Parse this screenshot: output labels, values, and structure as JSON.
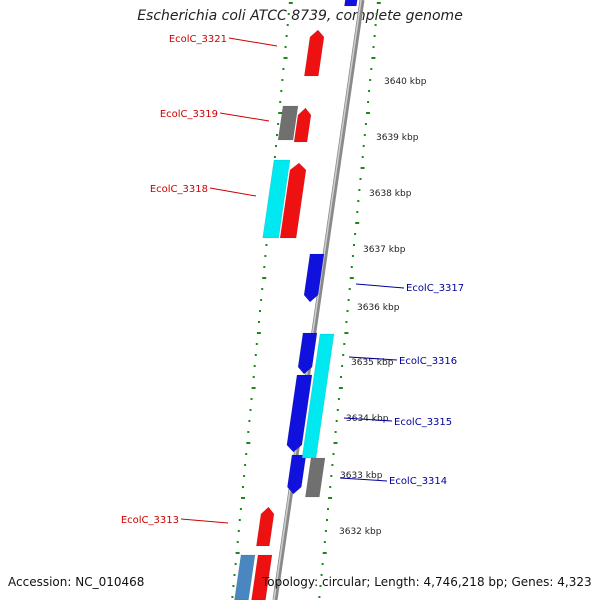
{
  "title": "Escherichia coli ATCC 8739, complete genome",
  "footer": {
    "accession": "Accession: NC_010468",
    "topology": "Topology: circular; Length: 4,746,218 bp; Genes: 4,323"
  },
  "colors": {
    "forward_cds": "#ee1111",
    "reverse_cds": "#1111dd",
    "forward_rna": "#00e8f0",
    "pseudo": "#707070",
    "other": "#4a86c0",
    "axis": "#999999",
    "ticks": "#1a8a1a",
    "label_forward": "#cc0000",
    "label_reverse": "#000099"
  },
  "scale_labels": [
    "3640 kbp",
    "3639 kbp",
    "3638 kbp",
    "3637 kbp",
    "3636 kbp",
    "3635 kbp",
    "3634 kbp",
    "3633 kbp",
    "3632 kbp"
  ],
  "gene_labels_left": [
    "EcolC_3321",
    "EcolC_3319",
    "EcolC_3318",
    "EcolC_3313"
  ],
  "gene_labels_right": [
    "EcolC_3317",
    "EcolC_3316",
    "EcolC_3315",
    "EcolC_3314"
  ]
}
